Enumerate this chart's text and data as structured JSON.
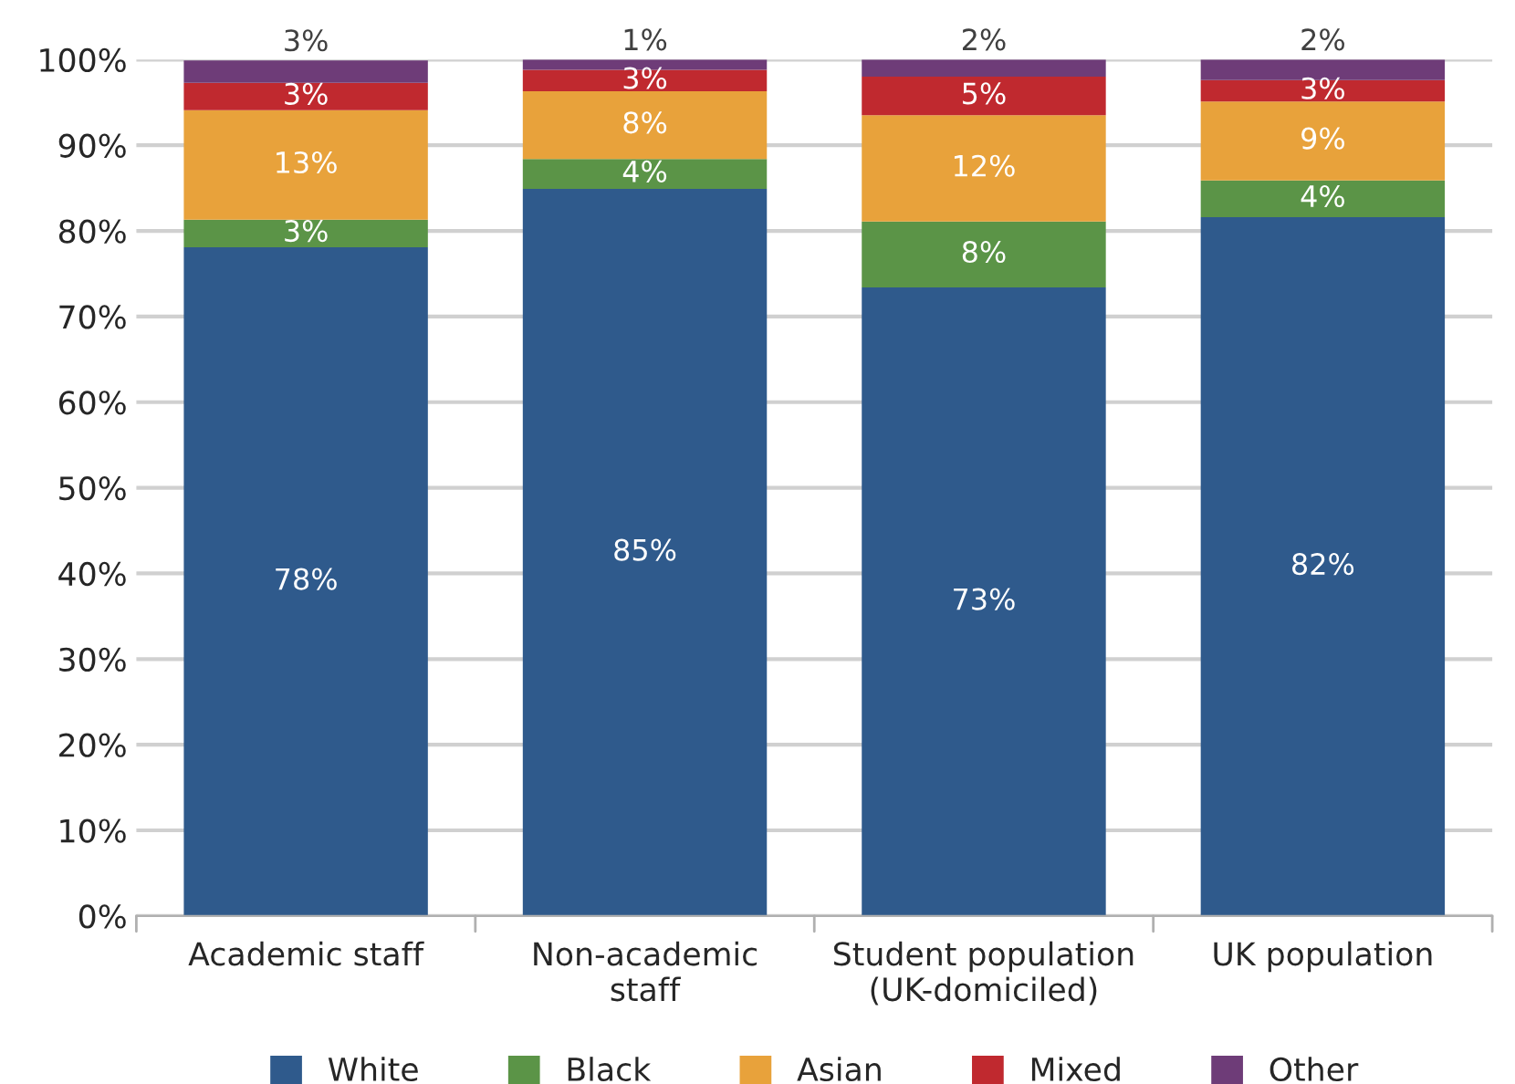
{
  "chart_data": {
    "type": "bar",
    "stacked": true,
    "categories": [
      "Academic staff",
      "Non-academic\nstaff",
      "Student population\n(UK-domiciled)",
      "UK population"
    ],
    "series": [
      {
        "name": "White",
        "color": "#2f5a8c",
        "values": [
          78.1,
          84.9,
          73.4,
          81.6
        ],
        "value_labels": [
          "78%",
          "85%",
          "73%",
          "82%"
        ]
      },
      {
        "name": "Black",
        "color": "#5b9447",
        "values": [
          3.2,
          3.5,
          7.7,
          4.3
        ],
        "value_labels": [
          "3%",
          "4%",
          "8%",
          "4%"
        ]
      },
      {
        "name": "Asian",
        "color": "#e8a23b",
        "values": [
          12.8,
          7.9,
          12.4,
          9.2
        ],
        "value_labels": [
          "13%",
          "8%",
          "12%",
          "9%"
        ]
      },
      {
        "name": "Mixed",
        "color": "#c0292f",
        "values": [
          3.2,
          2.5,
          4.5,
          2.5
        ],
        "value_labels": [
          "3%",
          "3%",
          "5%",
          "3%"
        ]
      },
      {
        "name": "Other",
        "color": "#6e3c78",
        "values": [
          2.6,
          1.2,
          2.0,
          2.4
        ],
        "value_labels": [
          "3%",
          "1%",
          "2%",
          "2%"
        ]
      }
    ],
    "ylim": [
      0,
      100
    ],
    "yticks": [
      {
        "value": 0,
        "label": "0%"
      },
      {
        "value": 10,
        "label": "10%"
      },
      {
        "value": 20,
        "label": "20%"
      },
      {
        "value": 30,
        "label": "30%"
      },
      {
        "value": 40,
        "label": "40%"
      },
      {
        "value": 50,
        "label": "50%"
      },
      {
        "value": 60,
        "label": "60%"
      },
      {
        "value": 70,
        "label": "70%"
      },
      {
        "value": 80,
        "label": "80%"
      },
      {
        "value": 90,
        "label": "90%"
      },
      {
        "value": 100,
        "label": "100%"
      }
    ],
    "grid": "y",
    "legend": "bottom"
  }
}
